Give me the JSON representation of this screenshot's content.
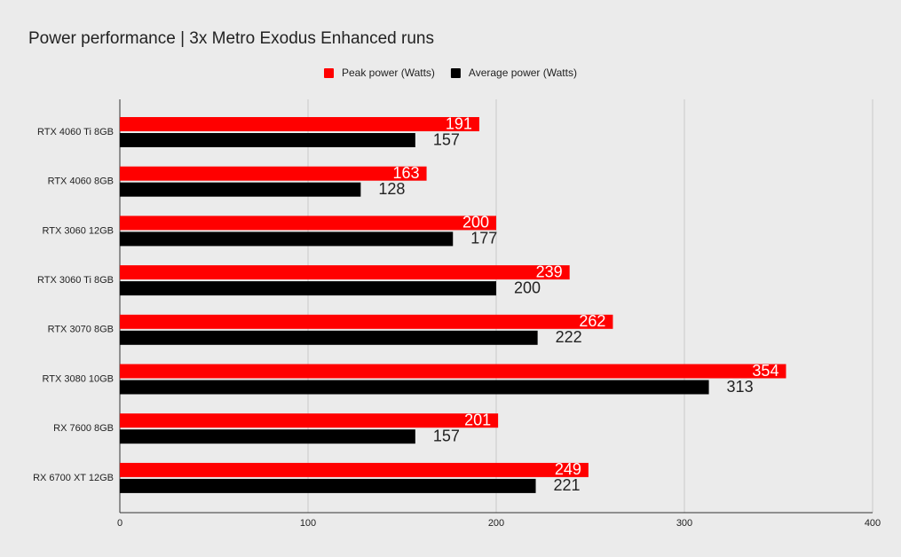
{
  "chart_data": {
    "type": "bar",
    "orientation": "horizontal",
    "title": "Power performance | 3x Metro Exodus Enhanced runs",
    "categories": [
      "RTX 4060 Ti 8GB",
      "RTX 4060 8GB",
      "RTX 3060 12GB",
      "RTX 3060 Ti 8GB",
      "RTX 3070 8GB",
      "RTX 3080 10GB",
      "RX 7600 8GB",
      "RX 6700 XT 12GB"
    ],
    "series": [
      {
        "name": "Peak power (Watts)",
        "color": "#ff0000",
        "values": [
          191,
          163,
          200,
          239,
          262,
          354,
          201,
          249
        ]
      },
      {
        "name": "Average power (Watts)",
        "color": "#000000",
        "values": [
          157,
          128,
          177,
          200,
          222,
          313,
          157,
          221
        ]
      }
    ],
    "xlim": [
      0,
      400
    ],
    "xticks": [
      0,
      100,
      200,
      300,
      400
    ],
    "grid": true,
    "legend": "top"
  }
}
